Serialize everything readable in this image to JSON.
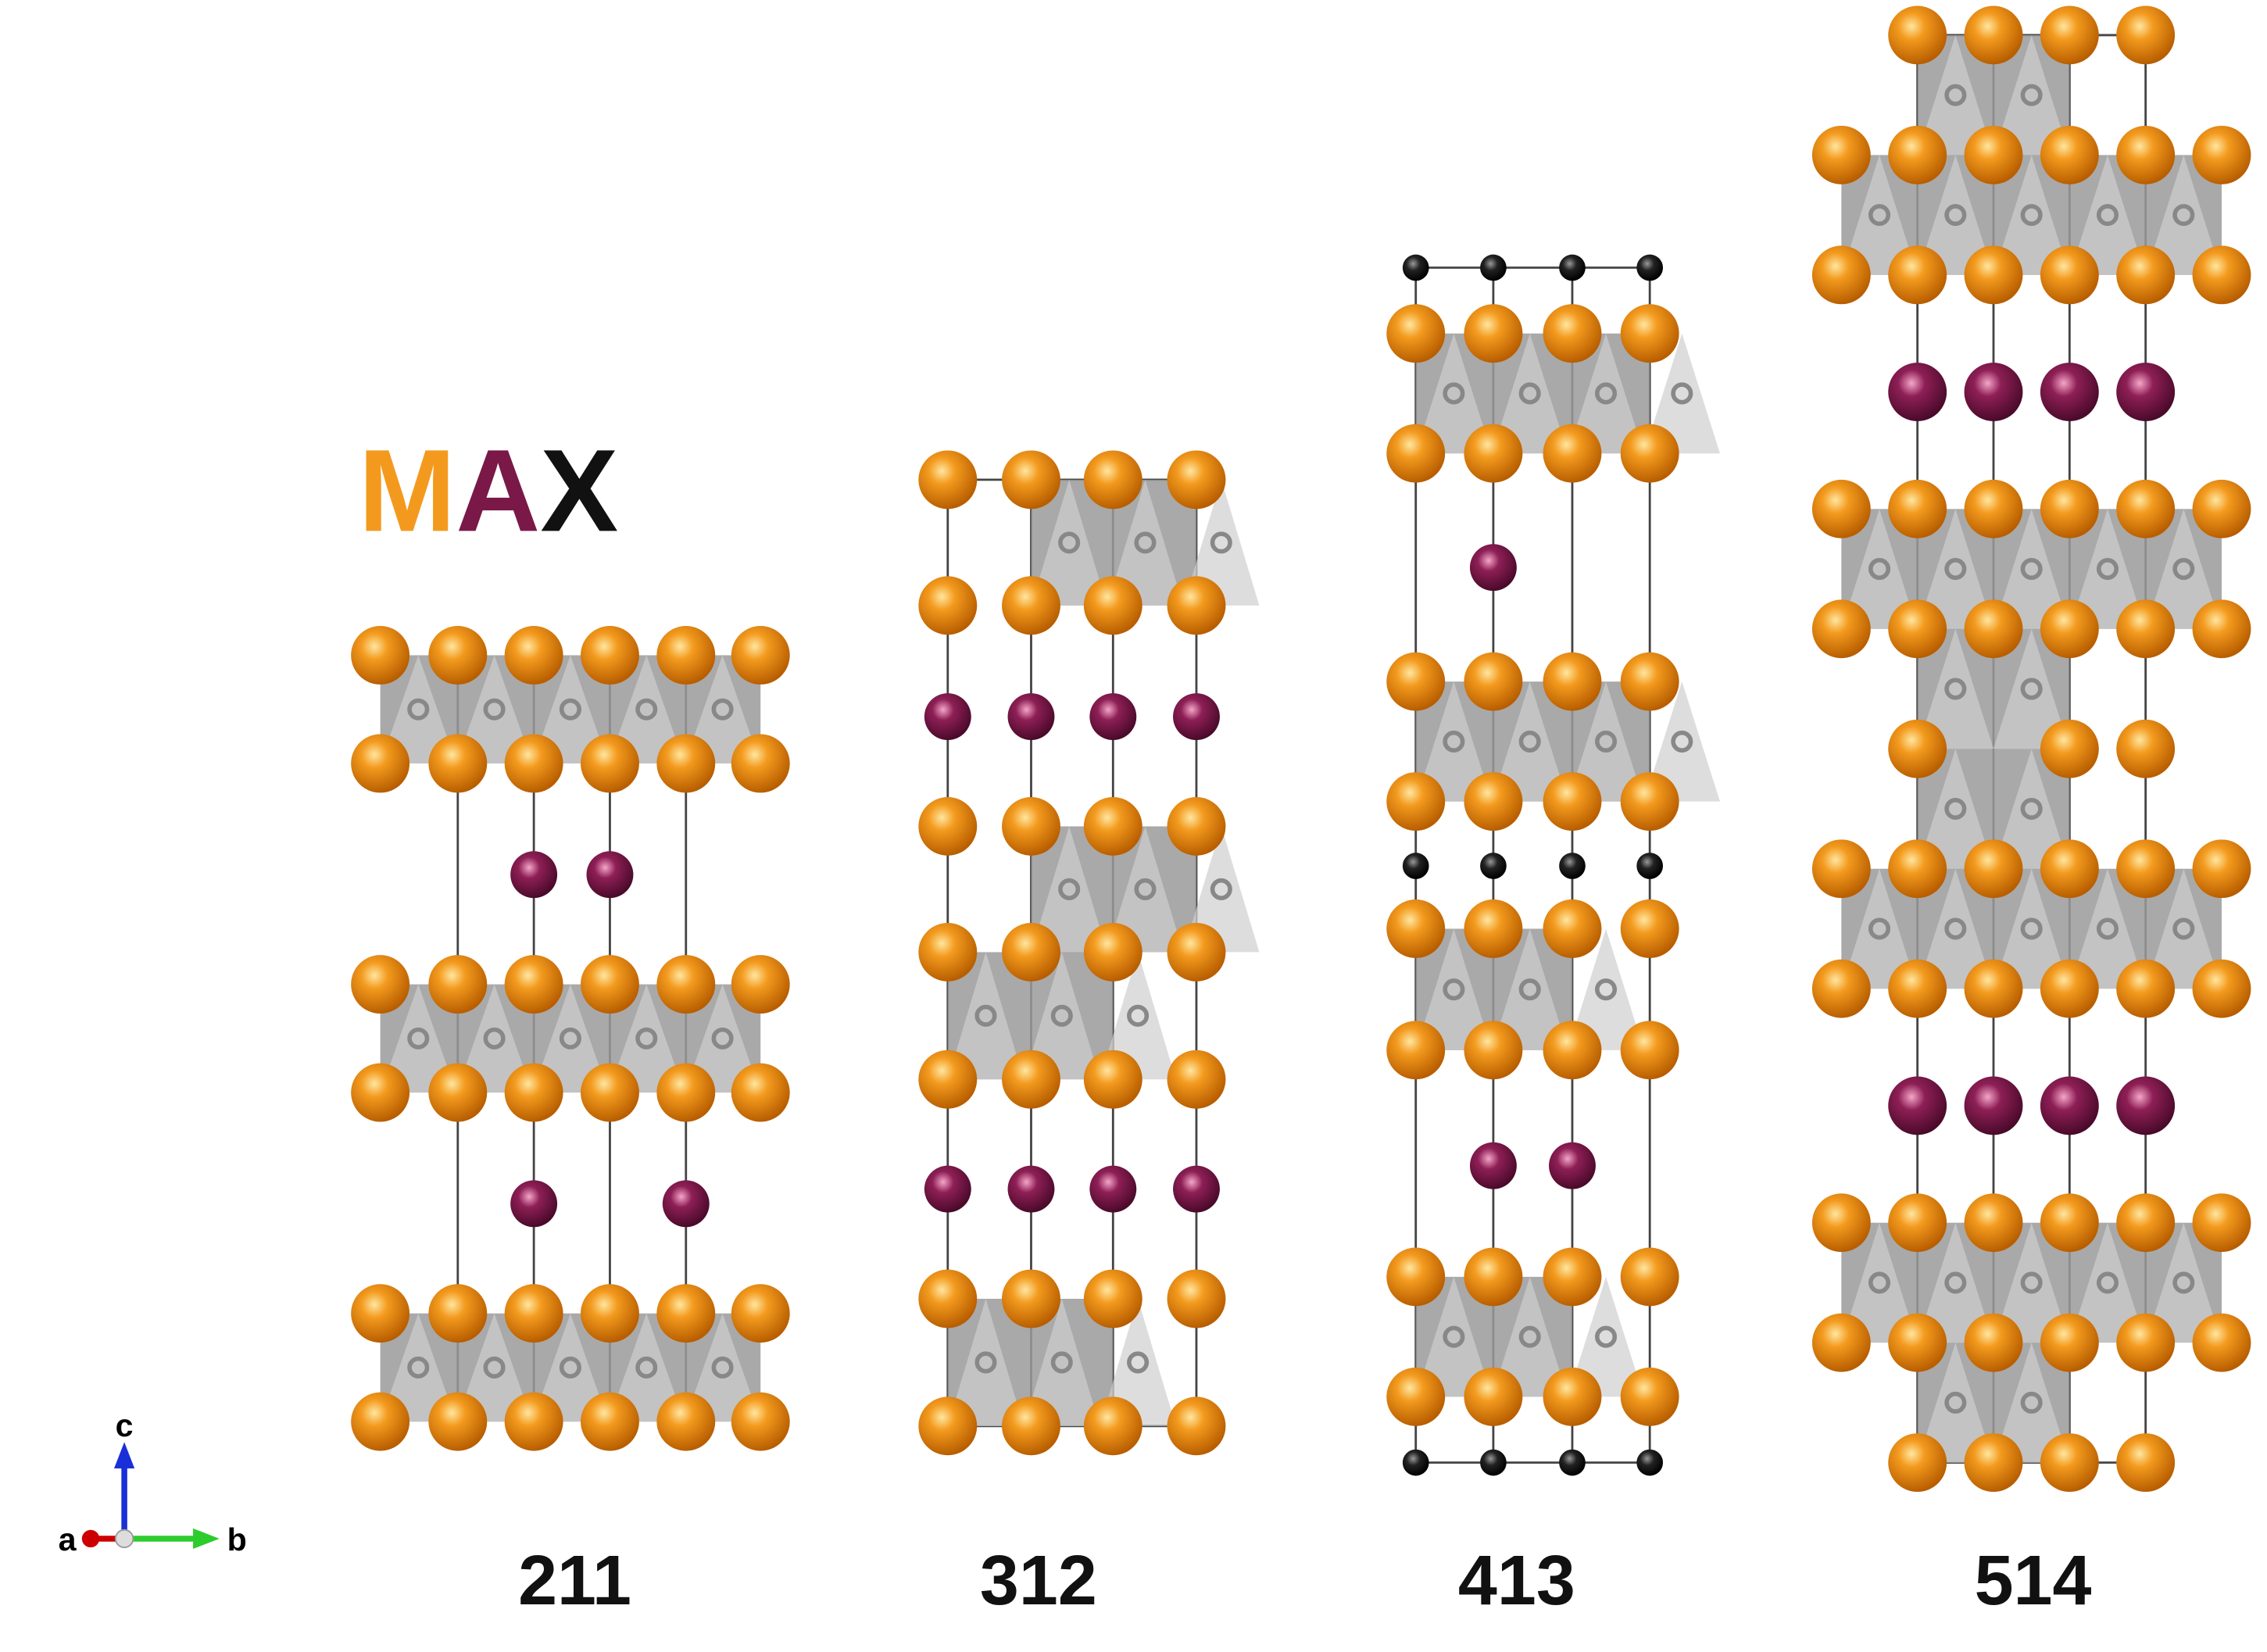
{
  "title": {
    "letters": [
      "M",
      "A",
      "X"
    ]
  },
  "structures": [
    {
      "label": "211"
    },
    {
      "label": "312"
    },
    {
      "label": "413"
    },
    {
      "label": "514"
    }
  ],
  "axes": {
    "a": "a",
    "b": "b",
    "c": "c"
  }
}
